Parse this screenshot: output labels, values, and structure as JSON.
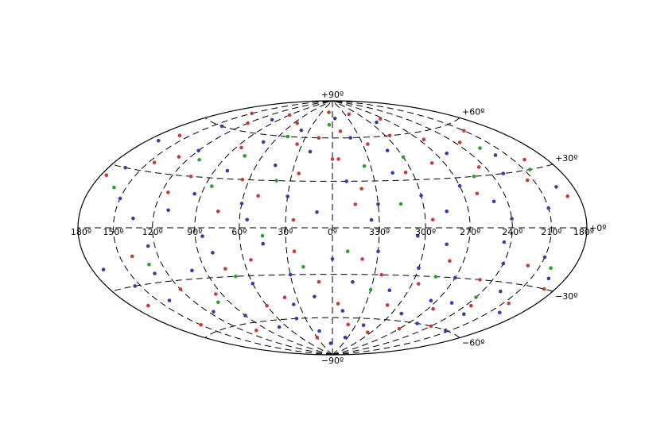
{
  "chart_data": {
    "type": "scatter",
    "projection": "hammer-aitoff",
    "title": "",
    "xlabel": "",
    "ylabel": "",
    "xlim": [
      -180,
      180
    ],
    "ylim": [
      -90,
      90
    ],
    "longitude_axis_direction": "decreasing-left-to-right",
    "grid": true,
    "grid_style": "dashed",
    "legend": null,
    "lon_tick_labels": [
      {
        "lon": 180,
        "label": "180º"
      },
      {
        "lon": 150,
        "label": "150º"
      },
      {
        "lon": 120,
        "label": "120º"
      },
      {
        "lon": 90,
        "label": "90º"
      },
      {
        "lon": 60,
        "label": "60º"
      },
      {
        "lon": 30,
        "label": "30º"
      },
      {
        "lon": 0,
        "label": "0º"
      },
      {
        "lon": -30,
        "label": "330º"
      },
      {
        "lon": -60,
        "label": "300º"
      },
      {
        "lon": -90,
        "label": "270º"
      },
      {
        "lon": -120,
        "label": "240º"
      },
      {
        "lon": -150,
        "label": "210º"
      },
      {
        "lon": -180,
        "label": "180º"
      }
    ],
    "lat_tick_labels": [
      {
        "lat": 90,
        "label": "+90º"
      },
      {
        "lat": 60,
        "label": "+60º"
      },
      {
        "lat": 30,
        "label": "+30º"
      },
      {
        "lat": 0,
        "label": "+0º"
      },
      {
        "lat": -30,
        "label": "−30º"
      },
      {
        "lat": -60,
        "label": "−60º"
      },
      {
        "lat": -90,
        "label": "−90º"
      }
    ],
    "series": [
      {
        "color": "#3a3aa8",
        "points": [
          [
            120,
            45
          ],
          [
            95,
            20
          ],
          [
            80,
            35
          ],
          [
            60,
            15
          ],
          [
            45,
            40
          ],
          [
            30,
            20
          ],
          [
            20,
            50
          ],
          [
            10,
            10
          ],
          [
            -10,
            30
          ],
          [
            -30,
            15
          ],
          [
            -45,
            35
          ],
          [
            -60,
            20
          ],
          [
            -75,
            10
          ],
          [
            -90,
            25
          ],
          [
            -110,
            15
          ],
          [
            -130,
            30
          ],
          [
            -150,
            10
          ],
          [
            -165,
            20
          ],
          [
            150,
            15
          ],
          [
            165,
            30
          ],
          [
            135,
            5
          ],
          [
            110,
            10
          ],
          [
            70,
            55
          ],
          [
            40,
            65
          ],
          [
            -20,
            60
          ],
          [
            -50,
            50
          ],
          [
            -100,
            45
          ],
          [
            -140,
            40
          ],
          [
            170,
            45
          ],
          [
            140,
            60
          ],
          [
            100,
            70
          ],
          [
            -5,
            75
          ],
          [
            -70,
            70
          ],
          [
            55,
            5
          ],
          [
            -25,
            5
          ],
          [
            -120,
            5
          ],
          [
            125,
            -10
          ],
          [
            100,
            -25
          ],
          [
            80,
            -15
          ],
          [
            60,
            -35
          ],
          [
            45,
            -10
          ],
          [
            30,
            -30
          ],
          [
            15,
            -45
          ],
          [
            0,
            -20
          ],
          [
            -15,
            -35
          ],
          [
            -30,
            -15
          ],
          [
            -45,
            -40
          ],
          [
            -60,
            -25
          ],
          [
            -75,
            -10
          ],
          [
            -90,
            -30
          ],
          [
            -105,
            -45
          ],
          [
            -120,
            -20
          ],
          [
            -135,
            -35
          ],
          [
            -150,
            -15
          ],
          [
            -165,
            -25
          ],
          [
            155,
            -30
          ],
          [
            140,
            -40
          ],
          [
            115,
            -50
          ],
          [
            90,
            -55
          ],
          [
            70,
            -65
          ],
          [
            40,
            -60
          ],
          [
            20,
            -70
          ],
          [
            -10,
            -55
          ],
          [
            -40,
            -65
          ],
          [
            -70,
            -55
          ],
          [
            -100,
            -60
          ],
          [
            -130,
            -50
          ],
          [
            -160,
            -45
          ],
          [
            170,
            -20
          ],
          [
            130,
            -25
          ],
          [
            85,
            -5
          ],
          [
            35,
            -50
          ],
          [
            -55,
            -5
          ],
          [
            -85,
            -45
          ],
          [
            -115,
            -8
          ],
          [
            -145,
            -60
          ],
          [
            5,
            -80
          ],
          [
            -25,
            -75
          ]
        ]
      },
      {
        "color": "#c43c3c",
        "points": [
          [
            130,
            40
          ],
          [
            105,
            30
          ],
          [
            85,
            50
          ],
          [
            65,
            30
          ],
          [
            50,
            20
          ],
          [
            35,
            55
          ],
          [
            25,
            35
          ],
          [
            15,
            60
          ],
          [
            -5,
            45
          ],
          [
            -20,
            25
          ],
          [
            -35,
            55
          ],
          [
            -55,
            35
          ],
          [
            -65,
            60
          ],
          [
            -80,
            40
          ],
          [
            -95,
            55
          ],
          [
            -115,
            35
          ],
          [
            -125,
            50
          ],
          [
            -145,
            25
          ],
          [
            -160,
            35
          ],
          [
            175,
            25
          ],
          [
            160,
            50
          ],
          [
            145,
            35
          ],
          [
            120,
            65
          ],
          [
            90,
            75
          ],
          [
            55,
            70
          ],
          [
            10,
            80
          ],
          [
            -40,
            78
          ],
          [
            -85,
            72
          ],
          [
            -150,
            55
          ],
          [
            -170,
            15
          ],
          [
            115,
            20
          ],
          [
            75,
            10
          ],
          [
            25,
            5
          ],
          [
            -15,
            15
          ],
          [
            -65,
            5
          ],
          [
            -100,
            20
          ],
          [
            140,
            -15
          ],
          [
            120,
            -35
          ],
          [
            95,
            -40
          ],
          [
            75,
            -25
          ],
          [
            55,
            -20
          ],
          [
            40,
            -45
          ],
          [
            25,
            -15
          ],
          [
            10,
            -35
          ],
          [
            -5,
            -50
          ],
          [
            -20,
            -20
          ],
          [
            -35,
            -30
          ],
          [
            -50,
            -50
          ],
          [
            -65,
            -35
          ],
          [
            -80,
            -20
          ],
          [
            -95,
            -50
          ],
          [
            -110,
            -30
          ],
          [
            -125,
            -45
          ],
          [
            -140,
            -20
          ],
          [
            -155,
            -40
          ],
          [
            -170,
            -30
          ],
          [
            165,
            -40
          ],
          [
            150,
            -55
          ],
          [
            105,
            -65
          ],
          [
            60,
            -50
          ],
          [
            30,
            -75
          ],
          [
            -20,
            -65
          ],
          [
            -55,
            -70
          ],
          [
            -90,
            -65
          ],
          [
            -120,
            -60
          ],
          [
            0,
            45
          ],
          [
            150,
            70
          ],
          [
            -10,
            65
          ]
        ]
      },
      {
        "color": "#2ca02c",
        "points": [
          [
            110,
            40
          ],
          [
            75,
            45
          ],
          [
            40,
            30
          ],
          [
            5,
            70
          ],
          [
            -25,
            40
          ],
          [
            -60,
            45
          ],
          [
            -105,
            30
          ],
          [
            -135,
            45
          ],
          [
            160,
            20
          ],
          [
            85,
            25
          ],
          [
            50,
            60
          ],
          [
            -45,
            15
          ],
          [
            -155,
            30
          ],
          [
            130,
            -20
          ],
          [
            70,
            -30
          ],
          [
            20,
            -25
          ],
          [
            -30,
            -40
          ],
          [
            -75,
            -30
          ],
          [
            -120,
            -40
          ],
          [
            -160,
            -20
          ],
          [
            100,
            -45
          ],
          [
            45,
            -5
          ],
          [
            -10,
            -15
          ]
        ]
      }
    ]
  }
}
